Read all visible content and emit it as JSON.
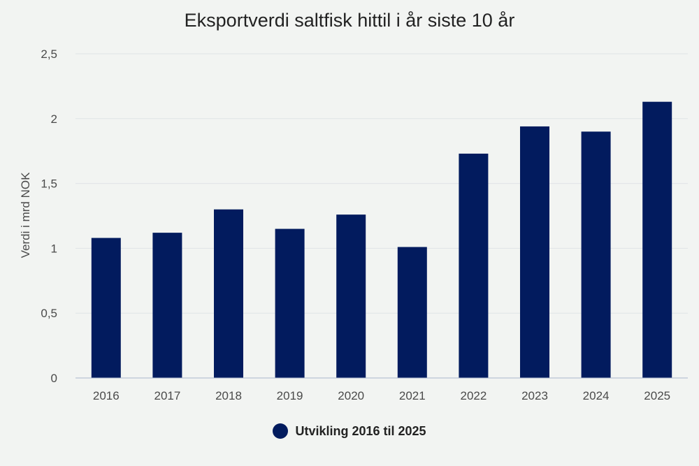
{
  "colors": {
    "bar": "#021b5e",
    "grid": "#dfe3e6",
    "axis": "#aab6cc"
  },
  "chart_data": {
    "type": "bar",
    "title": "Eksportverdi saltfisk hittil i år siste 10 år",
    "xlabel": "",
    "ylabel": "Verdi i mrd NOK",
    "ylim": [
      0,
      2.5
    ],
    "yticks": [
      "0",
      "0,5",
      "1",
      "1,5",
      "2",
      "2,5"
    ],
    "ytick_values": [
      0,
      0.5,
      1,
      1.5,
      2,
      2.5
    ],
    "categories": [
      "2016",
      "2017",
      "2018",
      "2019",
      "2020",
      "2021",
      "2022",
      "2023",
      "2024",
      "2025"
    ],
    "series": [
      {
        "name": "Utvikling 2016 til 2025",
        "values": [
          1.08,
          1.12,
          1.3,
          1.15,
          1.26,
          1.01,
          1.73,
          1.94,
          1.9,
          2.13
        ]
      }
    ],
    "grid": true,
    "legend_position": "bottom"
  }
}
